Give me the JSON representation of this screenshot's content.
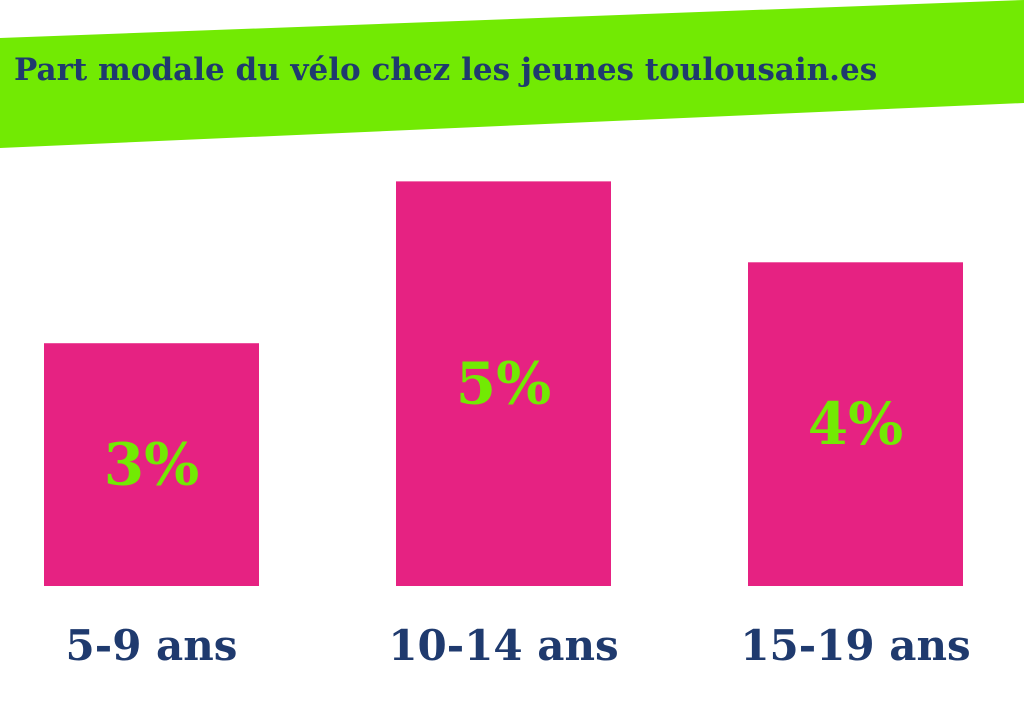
{
  "colors": {
    "banner": "#72EA03",
    "title": "#1F3A6E",
    "bar": "#E62282",
    "value_label": "#72EA03",
    "category_label": "#1F3A6E",
    "background": "#FFFFFF"
  },
  "chart_data": {
    "type": "bar",
    "title": "Part modale du vélo chez les jeunes toulousain.es",
    "categories": [
      "5-9 ans",
      "10-14 ans",
      "15-19 ans"
    ],
    "values": [
      3,
      5,
      4
    ],
    "value_labels": [
      "3%",
      "5%",
      "4%"
    ],
    "unit": "%",
    "ylim": [
      0,
      5.4
    ],
    "grid": false,
    "legend": "none"
  }
}
